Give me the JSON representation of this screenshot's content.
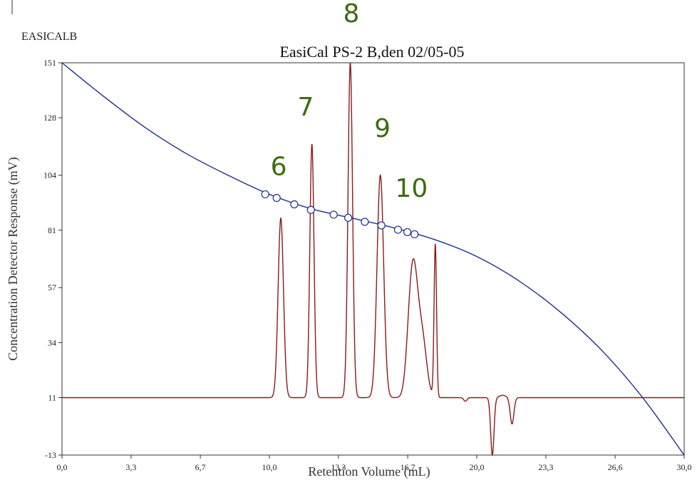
{
  "chart_data": {
    "type": "line",
    "corner_label": "EASICALB",
    "title": "EasiCal PS-2 B,den 02/05-05",
    "xlabel": "Retention Volume (mL)",
    "ylabel": "Concentration Detector Response (mV)",
    "xlim": [
      0,
      30
    ],
    "ylim": [
      -13,
      151
    ],
    "x_ticks": [
      "0,0",
      "3,3",
      "6,7",
      "10,0",
      "13,3",
      "16,7",
      "20,0",
      "23,3",
      "26,6",
      "30,0"
    ],
    "x_tick_values": [
      0,
      3.33,
      6.67,
      10,
      13.33,
      16.67,
      20,
      23.33,
      26.67,
      30
    ],
    "y_ticks": [
      "-13",
      "11",
      "34",
      "57",
      "81",
      "104",
      "128",
      "151"
    ],
    "y_tick_values": [
      -13,
      11,
      34,
      57,
      81,
      104,
      128,
      151
    ],
    "grid": false,
    "colors": {
      "chromatogram": "#8b1a1a",
      "calibration": "#1f2f8a",
      "peak_labels": "#3d6b10"
    },
    "series": [
      {
        "role": "chromatogram",
        "baseline": 11,
        "peaks": [
          {
            "center": 10.55,
            "height": 75,
            "width": 0.13
          },
          {
            "center": 12.05,
            "height": 106,
            "width": 0.1
          },
          {
            "center": 13.9,
            "height": 140,
            "width": 0.11
          },
          {
            "center": 15.35,
            "height": 93,
            "width": 0.16
          },
          {
            "center": 16.85,
            "height": 43,
            "width": 0.2
          },
          {
            "center": 17.05,
            "height": 18,
            "width": 0.17
          },
          {
            "center": 17.35,
            "height": 26,
            "width": 0.22
          },
          {
            "center": 18.0,
            "height": 64,
            "width": 0.06
          }
        ],
        "dips": [
          {
            "center": 19.45,
            "depth": 1.5,
            "width": 0.08
          },
          {
            "center": 20.75,
            "depth": 24,
            "width": 0.08
          },
          {
            "center": 21.25,
            "depth": -1,
            "width": 0.15
          },
          {
            "center": 21.7,
            "depth": 11,
            "width": 0.09
          }
        ]
      },
      {
        "role": "calibration",
        "x": [
          0,
          2,
          4,
          6,
          8,
          10,
          12,
          14,
          16,
          18,
          20,
          22,
          24,
          26,
          28,
          30
        ],
        "y": [
          151,
          137,
          124,
          113,
          104,
          96,
          90,
          86,
          82,
          77,
          70,
          60,
          47,
          31,
          11,
          -13
        ],
        "markers_x": [
          9.8,
          10.35,
          11.2,
          12,
          13.1,
          13.8,
          14.6,
          15.4,
          16.2,
          16.65,
          17.0
        ],
        "markers_y": [
          96,
          94.5,
          91.8,
          89.5,
          87.5,
          86.2,
          84.5,
          83,
          81.2,
          80.2,
          79.3
        ]
      }
    ],
    "annotations": [
      {
        "text": "6",
        "x": 10.45,
        "y": 104
      },
      {
        "text": "7",
        "x": 11.75,
        "y": 129
      },
      {
        "text": "8",
        "x": 13.95,
        "y": 168
      },
      {
        "text": "9",
        "x": 15.45,
        "y": 120
      },
      {
        "text": "10",
        "x": 16.85,
        "y": 95
      }
    ]
  }
}
